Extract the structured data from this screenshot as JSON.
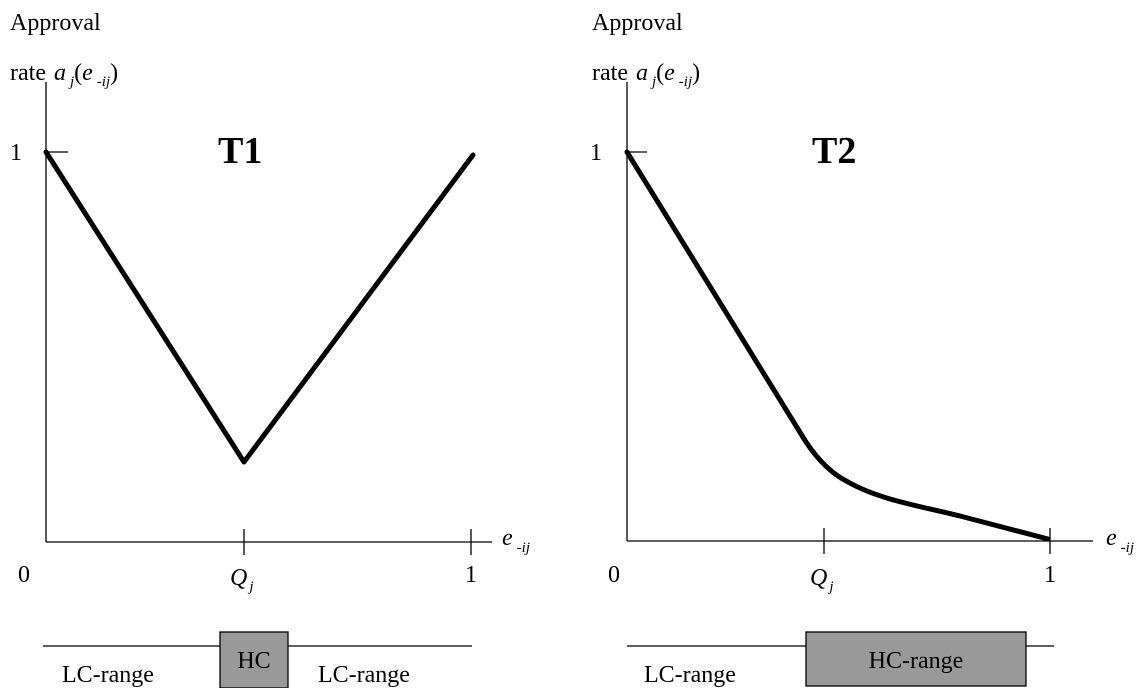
{
  "panels": [
    {
      "id": "T1",
      "title": "T1",
      "ylabel_line1": "Approval",
      "ylabel_rate": "rate",
      "ylabel_a": "a",
      "ylabel_j": "j",
      "ylabel_open": "(",
      "ylabel_e": "e",
      "ylabel_sub": "-ij",
      "ylabel_close": ")",
      "y_tick_1": "1",
      "x_tick_0": "0",
      "x_tick_Q": "Q",
      "x_tick_Q_sub": "j",
      "x_tick_1": "1",
      "xlabel_e": "e",
      "xlabel_sub": "-ij",
      "range_left": "LC-range",
      "range_box": "HC",
      "range_right": "LC-range"
    },
    {
      "id": "T2",
      "title": "T2",
      "ylabel_line1": "Approval",
      "ylabel_rate": "rate",
      "ylabel_a": "a",
      "ylabel_j": "j",
      "ylabel_open": "(",
      "ylabel_e": "e",
      "ylabel_sub": "-ij",
      "ylabel_close": ")",
      "y_tick_1": "1",
      "x_tick_0": "0",
      "x_tick_Q": "Q",
      "x_tick_Q_sub": "j",
      "x_tick_1": "1",
      "xlabel_e": "e",
      "xlabel_sub": "-ij",
      "range_left": "LC-range",
      "range_box": "HC-range"
    }
  ],
  "colors": {
    "line": "#000000",
    "box_fill": "#999999",
    "background": "#ffffff"
  }
}
